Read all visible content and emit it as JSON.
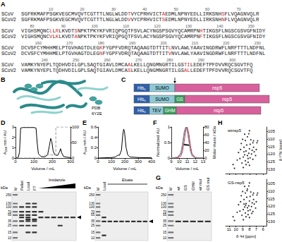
{
  "alignment": {
    "label": "A",
    "rows": [
      {
        "ruler": [
          10,
          20,
          30,
          40,
          50,
          60,
          70
        ],
        "seqs": [
          {
            "name": "SCoV",
            "seq": "SGFRKMAFPSGKVEGCMVQVTCGTTTLNGLWLDDTVYCPRHVICTAEDMLNPNYEDLLIRKSNHSFLVQAGNVQLR"
          },
          {
            "name": "SCoV2",
            "seq": "SGFRKMAFPSGKVEGCMVQVTCGTTTLNGLWLDDVVYCPRHVICTSEDMLNPNYEDLLIRKSNHNFLVQAGNVQLR"
          }
        ]
      },
      {
        "ruler": [
          80,
          90,
          100,
          110,
          120,
          130,
          140,
          150
        ],
        "seqs": [
          {
            "name": "SCoV",
            "seq": "VIGHSMQNCLLRLKVDTSNPKTPKYKFVRIQPGQTFSVLACYNGSPSGVYQCAMRPNHTIKGSFLNGSCGSVGFNIDY"
          },
          {
            "name": "SCoV2",
            "seq": "VIGHSMQNCVLKLKVDTANPKTPKYKFVRIQPGQTFSVLACYNGSPSGVYQCAMRPNFTIKGSFLNGSCGSVGFNIDY"
          }
        ]
      },
      {
        "ruler": [
          160,
          170,
          180,
          190,
          200,
          210,
          220,
          230
        ],
        "seqs": [
          {
            "name": "SCoV",
            "seq": "DCVSFCYMHHMELPTGVHAGTDLEGKFYGPFVDRQTAQAAGTDTTITLNVLAWLYAAVINGDRWFLNRFTTTLNDFNL"
          },
          {
            "name": "SCoV2",
            "seq": "DCVSFCYMHHMELPTGVHAGTDLEGNFYGPFVDRQTAQAAGTDTTITVNVLAWLYAAVINGDRWFLNRFTTTLNDFNL"
          }
        ]
      },
      {
        "ruler": [
          240,
          250,
          260,
          270,
          280,
          290,
          300
        ],
        "seqs": [
          {
            "name": "SCoV",
            "seq": "VAMKYNYEPLTQDHVDILGPLSAQTGIAVLDMCAALKELLQNGMNGRTILGSTILEDEFTPFDVVRQCSGVTFQ"
          },
          {
            "name": "SCoV2",
            "seq": "VAMKYNYEPLTQDHVDILGPLSAQTGIAVLDMCASLKELLQNGMNGRTILGSALLEDEFTPFDVVRQCSGVTFQ"
          }
        ]
      }
    ]
  },
  "structure": {
    "label": "B",
    "caption": [
      "PDB",
      "6Y2E"
    ]
  },
  "constructs": {
    "label": "C",
    "rows": [
      [
        {
          "text": "His₆",
          "color": "#2f5fa8"
        },
        {
          "text": "SUMO",
          "color": "#8fc9d6"
        },
        {
          "text": "nsp5",
          "color": "#d8609c",
          "arrow": true
        }
      ],
      [
        {
          "text": "His₆",
          "color": "#2f5fa8"
        },
        {
          "text": "SUMO",
          "color": "#8fc9d6"
        },
        {
          "text": "GS",
          "color": "#3a9a5b"
        },
        {
          "text": "nsp5",
          "color": "#d8609c"
        }
      ],
      [
        {
          "text": "His₆",
          "color": "#2f5fa8"
        },
        {
          "text": "TEV",
          "color": "#8fc9d6"
        },
        {
          "text": "GHM",
          "color": "#3a9a5b"
        },
        {
          "text": "nsp5",
          "color": "#d8609c"
        }
      ]
    ]
  },
  "chart_data": [
    {
      "label": "D",
      "type": "line",
      "x_label": "Volume / mL",
      "y_label": "A₂₈₀ nm / AU",
      "xlim": [
        0,
        300
      ],
      "xticks": [
        0,
        100,
        200,
        300
      ],
      "ylim": [
        0,
        3
      ],
      "yticks": [
        0,
        1,
        2,
        3
      ],
      "y2lim": [
        0,
        100
      ],
      "y2ticks": [
        0,
        50,
        100
      ],
      "series": [
        {
          "color": "#000000",
          "x": [
            0,
            15,
            22,
            28,
            40,
            60,
            80,
            100,
            112,
            118,
            125,
            140,
            160,
            175,
            185,
            192,
            198,
            205,
            215,
            230,
            240,
            246,
            252,
            262,
            280,
            300
          ],
          "values": [
            0.05,
            0.05,
            0.6,
            2.9,
            2.95,
            2.95,
            2.95,
            2.95,
            2.9,
            1.5,
            0.4,
            0.15,
            0.12,
            0.3,
            1.2,
            1.9,
            1.6,
            0.7,
            0.3,
            0.25,
            0.6,
            0.9,
            0.5,
            0.15,
            0.08,
            0.05
          ]
        },
        {
          "color": "#9a9a9a",
          "line_style": "dashed",
          "axis": "y2",
          "x": [
            0,
            160,
            160,
            220,
            220,
            300
          ],
          "values": [
            0,
            0,
            10,
            10,
            100,
            100
          ]
        }
      ]
    },
    {
      "label": "E",
      "type": "line",
      "x_label": "Volume / mL",
      "y_label": "A₂₈₀ nm / AU",
      "xlim": [
        0,
        400
      ],
      "xticks": [
        0,
        100,
        200,
        300,
        400
      ],
      "ylim": [
        0,
        0.6
      ],
      "yticks": [
        0,
        0.2,
        0.4,
        0.6
      ],
      "series": [
        {
          "color": "#000000",
          "x": [
            0,
            100,
            130,
            150,
            160,
            175,
            185,
            192,
            198,
            210,
            222,
            240,
            300,
            400
          ],
          "values": [
            0,
            0.01,
            0.02,
            0.06,
            0.05,
            0.15,
            0.45,
            0.56,
            0.5,
            0.2,
            0.06,
            0.02,
            0.01,
            0.005
          ]
        }
      ]
    },
    {
      "label": "F",
      "type": "line",
      "x_label": "Volume / mL",
      "y_label": "Normalized AU",
      "y2_label": "Molar mass / kDa",
      "xlim": [
        9,
        13
      ],
      "xticks": [
        9,
        10,
        11,
        12,
        13
      ],
      "ylim": [
        0,
        1
      ],
      "yticks": [
        0,
        0.5,
        1
      ],
      "y2lim": [
        0,
        80
      ],
      "y2ticks": [
        0,
        20,
        40,
        60,
        80
      ],
      "series": [
        {
          "color": "#3b6fd1",
          "x": [
            9,
            9.8,
            10.2,
            10.4,
            10.6,
            10.8,
            10.9,
            11.0,
            11.2,
            11.4,
            11.6,
            12,
            13
          ],
          "values": [
            0,
            0.02,
            0.12,
            0.35,
            0.72,
            0.96,
            1.0,
            0.95,
            0.66,
            0.3,
            0.1,
            0.01,
            0
          ]
        },
        {
          "color": "#d63a3a",
          "x": [
            9,
            9.8,
            10.2,
            10.4,
            10.6,
            10.8,
            10.9,
            11.0,
            11.2,
            11.4,
            11.6,
            12,
            13
          ],
          "values": [
            0,
            0.01,
            0.06,
            0.2,
            0.5,
            0.85,
            0.97,
            1.0,
            0.8,
            0.42,
            0.15,
            0.02,
            0
          ]
        },
        {
          "color": "#8c8c8c",
          "x": [
            9,
            9.8,
            10.2,
            10.4,
            10.6,
            10.8,
            10.9,
            11.0,
            11.2,
            11.4,
            11.6,
            12,
            13
          ],
          "values": [
            0,
            0.03,
            0.18,
            0.45,
            0.82,
            1.0,
            0.97,
            0.88,
            0.55,
            0.22,
            0.07,
            0.01,
            0
          ]
        },
        {
          "color": "#000000",
          "type": "scatter",
          "marker": "circle",
          "axis": "y2",
          "x": [
            10.6,
            10.7,
            10.8,
            10.9,
            11.0,
            11.1,
            11.2
          ],
          "values": [
            35,
            34.5,
            34,
            34,
            33.8,
            33.5,
            33
          ]
        }
      ]
    },
    {
      "label": "H",
      "type": "scatter",
      "title": "wtnsp5",
      "y_label": "δ ¹⁵N [ppm]",
      "tick_labels": "y",
      "xlim": [
        11.5,
        5.5
      ],
      "xticks": [
        11,
        10,
        9,
        8,
        7,
        6
      ],
      "ylim": [
        133,
        102
      ],
      "yticks": [
        105,
        110,
        115,
        120,
        125,
        130
      ],
      "series": [
        {
          "color": "#000000",
          "marker": "circle",
          "x": [
            8.9,
            8.7,
            8.5,
            8.3,
            8.1,
            7.9,
            7.7,
            8.6,
            8.2,
            9.1,
            9.4,
            8.0,
            7.6,
            8.4,
            8.8,
            7.3,
            7.8,
            8.3,
            8.6,
            9.2,
            9.6,
            7.5,
            7.1,
            8.0,
            8.9,
            10.2,
            10.4,
            6.9,
            7.5,
            6.8,
            7.4,
            8.1,
            8.7,
            9.0,
            7.9,
            8.5,
            9.3,
            8.2,
            7.4,
            8.8,
            7.0,
            9.8,
            8.0
          ],
          "values": [
            122,
            120.5,
            118,
            121,
            119.5,
            122.5,
            120,
            124.5,
            125.5,
            126,
            123,
            116.5,
            117.5,
            114,
            115.5,
            118.5,
            110.5,
            108.5,
            111,
            113,
            119,
            123.5,
            121,
            127.5,
            129,
            129.5,
            127,
            112.5,
            112.5,
            111.2,
            111.2,
            106.5,
            106.8,
            110.2,
            113.5,
            127,
            117,
            123,
            115.5,
            118.5,
            117,
            124,
            104.5
          ]
        }
      ]
    },
    {
      "type": "scatter",
      "title": "GS-nsp5",
      "x_label": "δ ¹H [ppm]",
      "xlim": [
        11.5,
        5.5
      ],
      "xticks": [
        11,
        10,
        9,
        8,
        7,
        6
      ],
      "ylim": [
        133,
        102
      ],
      "yticks": [
        105,
        110,
        115,
        120,
        125,
        130
      ],
      "series": [
        {
          "color": "#000000",
          "marker": "circle",
          "x": [
            8.9,
            8.7,
            8.5,
            8.3,
            8.1,
            7.9,
            7.7,
            8.6,
            8.2,
            9.1,
            9.4,
            8.0,
            7.6,
            8.4,
            8.8,
            7.3,
            7.8,
            8.3,
            8.6,
            9.2,
            9.6,
            7.5,
            7.1,
            8.0,
            8.9,
            10.2,
            10.4,
            6.9,
            7.5,
            6.8,
            7.4,
            8.1,
            8.7,
            9.0,
            7.9,
            8.5,
            9.3,
            8.2,
            7.4,
            8.8,
            7.0,
            9.8,
            8.0,
            8.35,
            7.65,
            8.55
          ],
          "values": [
            122.2,
            120.5,
            118.2,
            121,
            119.7,
            122.5,
            120.2,
            124.5,
            125.6,
            126,
            123.2,
            116.5,
            117.7,
            114,
            115.5,
            118.5,
            110.5,
            108.5,
            111.2,
            113,
            119,
            123.5,
            121.2,
            127.5,
            129,
            129.5,
            127,
            112.5,
            112.5,
            111.2,
            111.2,
            106.5,
            106.8,
            110.2,
            113.5,
            127,
            117,
            123,
            115.5,
            118.5,
            117,
            124,
            104.5,
            109.6,
            124.8,
            119.3
          ]
        }
      ]
    }
  ],
  "gels": [
    {
      "unit": "kDa",
      "markers": [
        250,
        130,
        100,
        70,
        55,
        35,
        25,
        15,
        10
      ],
      "group_wedge": true,
      "arrow_kDa": 46,
      "lanes": [
        {
          "name": "M",
          "marker": true
        },
        {
          "name": "Pellet",
          "bands": [
            100,
            70,
            55,
            46,
            35,
            25
          ]
        },
        {
          "name": "Load",
          "bands": [
            130,
            100,
            70,
            55,
            46,
            40,
            35,
            25,
            15
          ]
        },
        {
          "name": "FT",
          "bands": [
            130,
            100,
            70,
            55,
            40,
            35,
            25,
            15
          ]
        },
        {
          "group": "Imidazole",
          "bands": [
            70,
            46
          ]
        },
        {
          "group": "Imidazole",
          "bands": [
            46
          ]
        },
        {
          "group": "Imidazole",
          "bands": [
            46
          ]
        },
        {
          "group": "Imidazole",
          "bands": [
            46,
            25
          ]
        },
        {
          "group": "Imidazole",
          "bands": [
            46
          ]
        },
        {
          "group": "Imidazole",
          "bands": [
            46
          ]
        }
      ]
    },
    {
      "unit": "kDa",
      "markers": [
        250,
        130,
        100,
        70,
        55,
        35,
        25,
        15,
        10
      ],
      "group_wedge": false,
      "arrow_kDa": 34,
      "lanes": [
        {
          "name": "M",
          "marker": true
        },
        {
          "name": "Load",
          "bands": [
            46,
            34,
            12
          ]
        },
        {
          "group": "Eluate",
          "bands": [
            34
          ]
        },
        {
          "group": "Eluate",
          "bands": [
            34
          ]
        },
        {
          "group": "Eluate",
          "bands": [
            34
          ]
        },
        {
          "group": "Eluate",
          "bands": [
            34
          ]
        },
        {
          "group": "Eluate",
          "bands": [
            34
          ]
        },
        {
          "group": "Eluate",
          "bands": [
            34
          ]
        },
        {
          "group": "Eluate",
          "bands": [
            34
          ]
        }
      ]
    },
    {
      "label": "G",
      "unit": "kDa",
      "markers": [
        250,
        130,
        100,
        70,
        55,
        35,
        25,
        15,
        10
      ],
      "lanes": [
        {
          "name": "M",
          "marker": true
        },
        {
          "name": "wt",
          "bands": [
            34
          ]
        },
        {
          "name": "GS",
          "bands": [
            34
          ]
        },
        {
          "name": "GHM",
          "bands": [
            34
          ]
        },
        {
          "name": "wt mut",
          "bands": [
            34
          ]
        },
        {
          "name": "GS mut",
          "bands": [
            34
          ]
        }
      ]
    }
  ]
}
